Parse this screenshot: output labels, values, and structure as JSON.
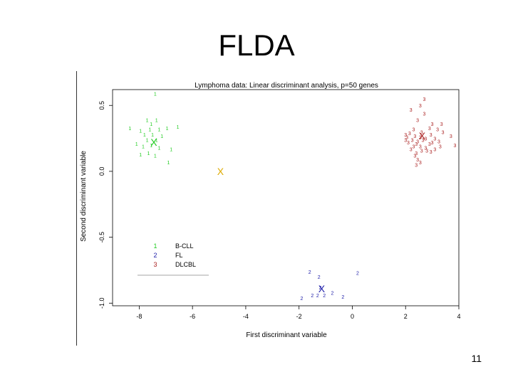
{
  "slide": {
    "title": "FLDA",
    "page_number": "11"
  },
  "colors": {
    "B-CLL": "#22cc22",
    "FL": "#2222aa",
    "DLCBL": "#aa2222",
    "grand_centroid": "#ddaa00",
    "axis": "#000000"
  },
  "chart_data": {
    "type": "scatter",
    "title": "Lymphoma data: Linear discriminant analysis, p=50 genes",
    "xlabel": "First discriminant variable",
    "ylabel": "Second discriminant variable",
    "xlim": [
      -9,
      4
    ],
    "ylim": [
      -1.02,
      0.62
    ],
    "xticks": [
      -8,
      -6,
      -4,
      -2,
      0,
      2,
      4
    ],
    "yticks": [
      -1.0,
      -0.5,
      0.0,
      0.5
    ],
    "xtick_labels": [
      "-8",
      "-6",
      "-4",
      "-2",
      "0",
      "2",
      "4"
    ],
    "ytick_labels": [
      "-1.0",
      "-0.5",
      "0.0",
      "0.5"
    ],
    "legend": {
      "position": "bottom-left",
      "entries": [
        {
          "symbol": "1",
          "label": "B-CLL"
        },
        {
          "symbol": "2",
          "label": "FL"
        },
        {
          "symbol": "3",
          "label": "DLCBL"
        }
      ]
    },
    "series": [
      {
        "name": "B-CLL",
        "symbol": "1",
        "points": [
          [
            -7.4,
            0.59
          ],
          [
            -7.7,
            0.39
          ],
          [
            -7.35,
            0.39
          ],
          [
            -7.55,
            0.36
          ],
          [
            -8.35,
            0.33
          ],
          [
            -7.95,
            0.31
          ],
          [
            -7.6,
            0.32
          ],
          [
            -7.25,
            0.32
          ],
          [
            -6.95,
            0.33
          ],
          [
            -6.55,
            0.34
          ],
          [
            -7.8,
            0.28
          ],
          [
            -7.5,
            0.28
          ],
          [
            -7.15,
            0.27
          ],
          [
            -7.7,
            0.24
          ],
          [
            -7.35,
            0.24
          ],
          [
            -8.1,
            0.21
          ],
          [
            -7.85,
            0.19
          ],
          [
            -7.55,
            0.2
          ],
          [
            -7.25,
            0.18
          ],
          [
            -6.8,
            0.17
          ],
          [
            -7.65,
            0.14
          ],
          [
            -7.95,
            0.13
          ],
          [
            -7.4,
            0.12
          ],
          [
            -6.9,
            0.07
          ]
        ]
      },
      {
        "name": "FL",
        "symbol": "2",
        "points": [
          [
            -1.6,
            -0.76
          ],
          [
            -1.25,
            -0.8
          ],
          [
            0.2,
            -0.77
          ],
          [
            -1.2,
            -0.88
          ],
          [
            -0.75,
            -0.92
          ],
          [
            -1.3,
            -0.94
          ],
          [
            -1.5,
            -0.94
          ],
          [
            -1.9,
            -0.96
          ],
          [
            -0.35,
            -0.95
          ],
          [
            -1.05,
            -0.94
          ]
        ]
      },
      {
        "name": "DLCBL",
        "symbol": "3",
        "points": [
          [
            2.7,
            0.55
          ],
          [
            2.55,
            0.5
          ],
          [
            2.2,
            0.47
          ],
          [
            2.7,
            0.44
          ],
          [
            2.45,
            0.39
          ],
          [
            3.0,
            0.36
          ],
          [
            3.35,
            0.36
          ],
          [
            2.9,
            0.33
          ],
          [
            2.3,
            0.32
          ],
          [
            3.2,
            0.32
          ],
          [
            3.4,
            0.3
          ],
          [
            2.6,
            0.3
          ],
          [
            2.15,
            0.29
          ],
          [
            2.95,
            0.28
          ],
          [
            2.0,
            0.28
          ],
          [
            3.7,
            0.27
          ],
          [
            2.35,
            0.27
          ],
          [
            2.55,
            0.26
          ],
          [
            2.75,
            0.25
          ],
          [
            3.1,
            0.25
          ],
          [
            2.0,
            0.24
          ],
          [
            2.25,
            0.24
          ],
          [
            2.45,
            0.23
          ],
          [
            2.65,
            0.24
          ],
          [
            3.25,
            0.23
          ],
          [
            2.1,
            0.22
          ],
          [
            2.4,
            0.21
          ],
          [
            2.9,
            0.21
          ],
          [
            3.0,
            0.22
          ],
          [
            3.85,
            0.2
          ],
          [
            2.3,
            0.19
          ],
          [
            2.55,
            0.19
          ],
          [
            2.75,
            0.18
          ],
          [
            3.3,
            0.19
          ],
          [
            2.2,
            0.17
          ],
          [
            2.6,
            0.16
          ],
          [
            2.8,
            0.16
          ],
          [
            2.95,
            0.15
          ],
          [
            2.4,
            0.14
          ],
          [
            2.35,
            0.12
          ],
          [
            2.45,
            0.09
          ],
          [
            2.55,
            0.07
          ],
          [
            2.4,
            0.05
          ],
          [
            3.1,
            0.17
          ],
          [
            2.05,
            0.26
          ]
        ]
      }
    ],
    "centroids": [
      {
        "name": "B-CLL",
        "symbol": "X",
        "x": -7.45,
        "y": 0.22
      },
      {
        "name": "grand",
        "symbol": "X",
        "x": -4.95,
        "y": 0.0
      },
      {
        "name": "FL",
        "symbol": "X",
        "x": -1.15,
        "y": -0.89
      },
      {
        "name": "DLCBL",
        "symbol": "X",
        "x": 2.62,
        "y": 0.27
      }
    ],
    "grid": false
  }
}
